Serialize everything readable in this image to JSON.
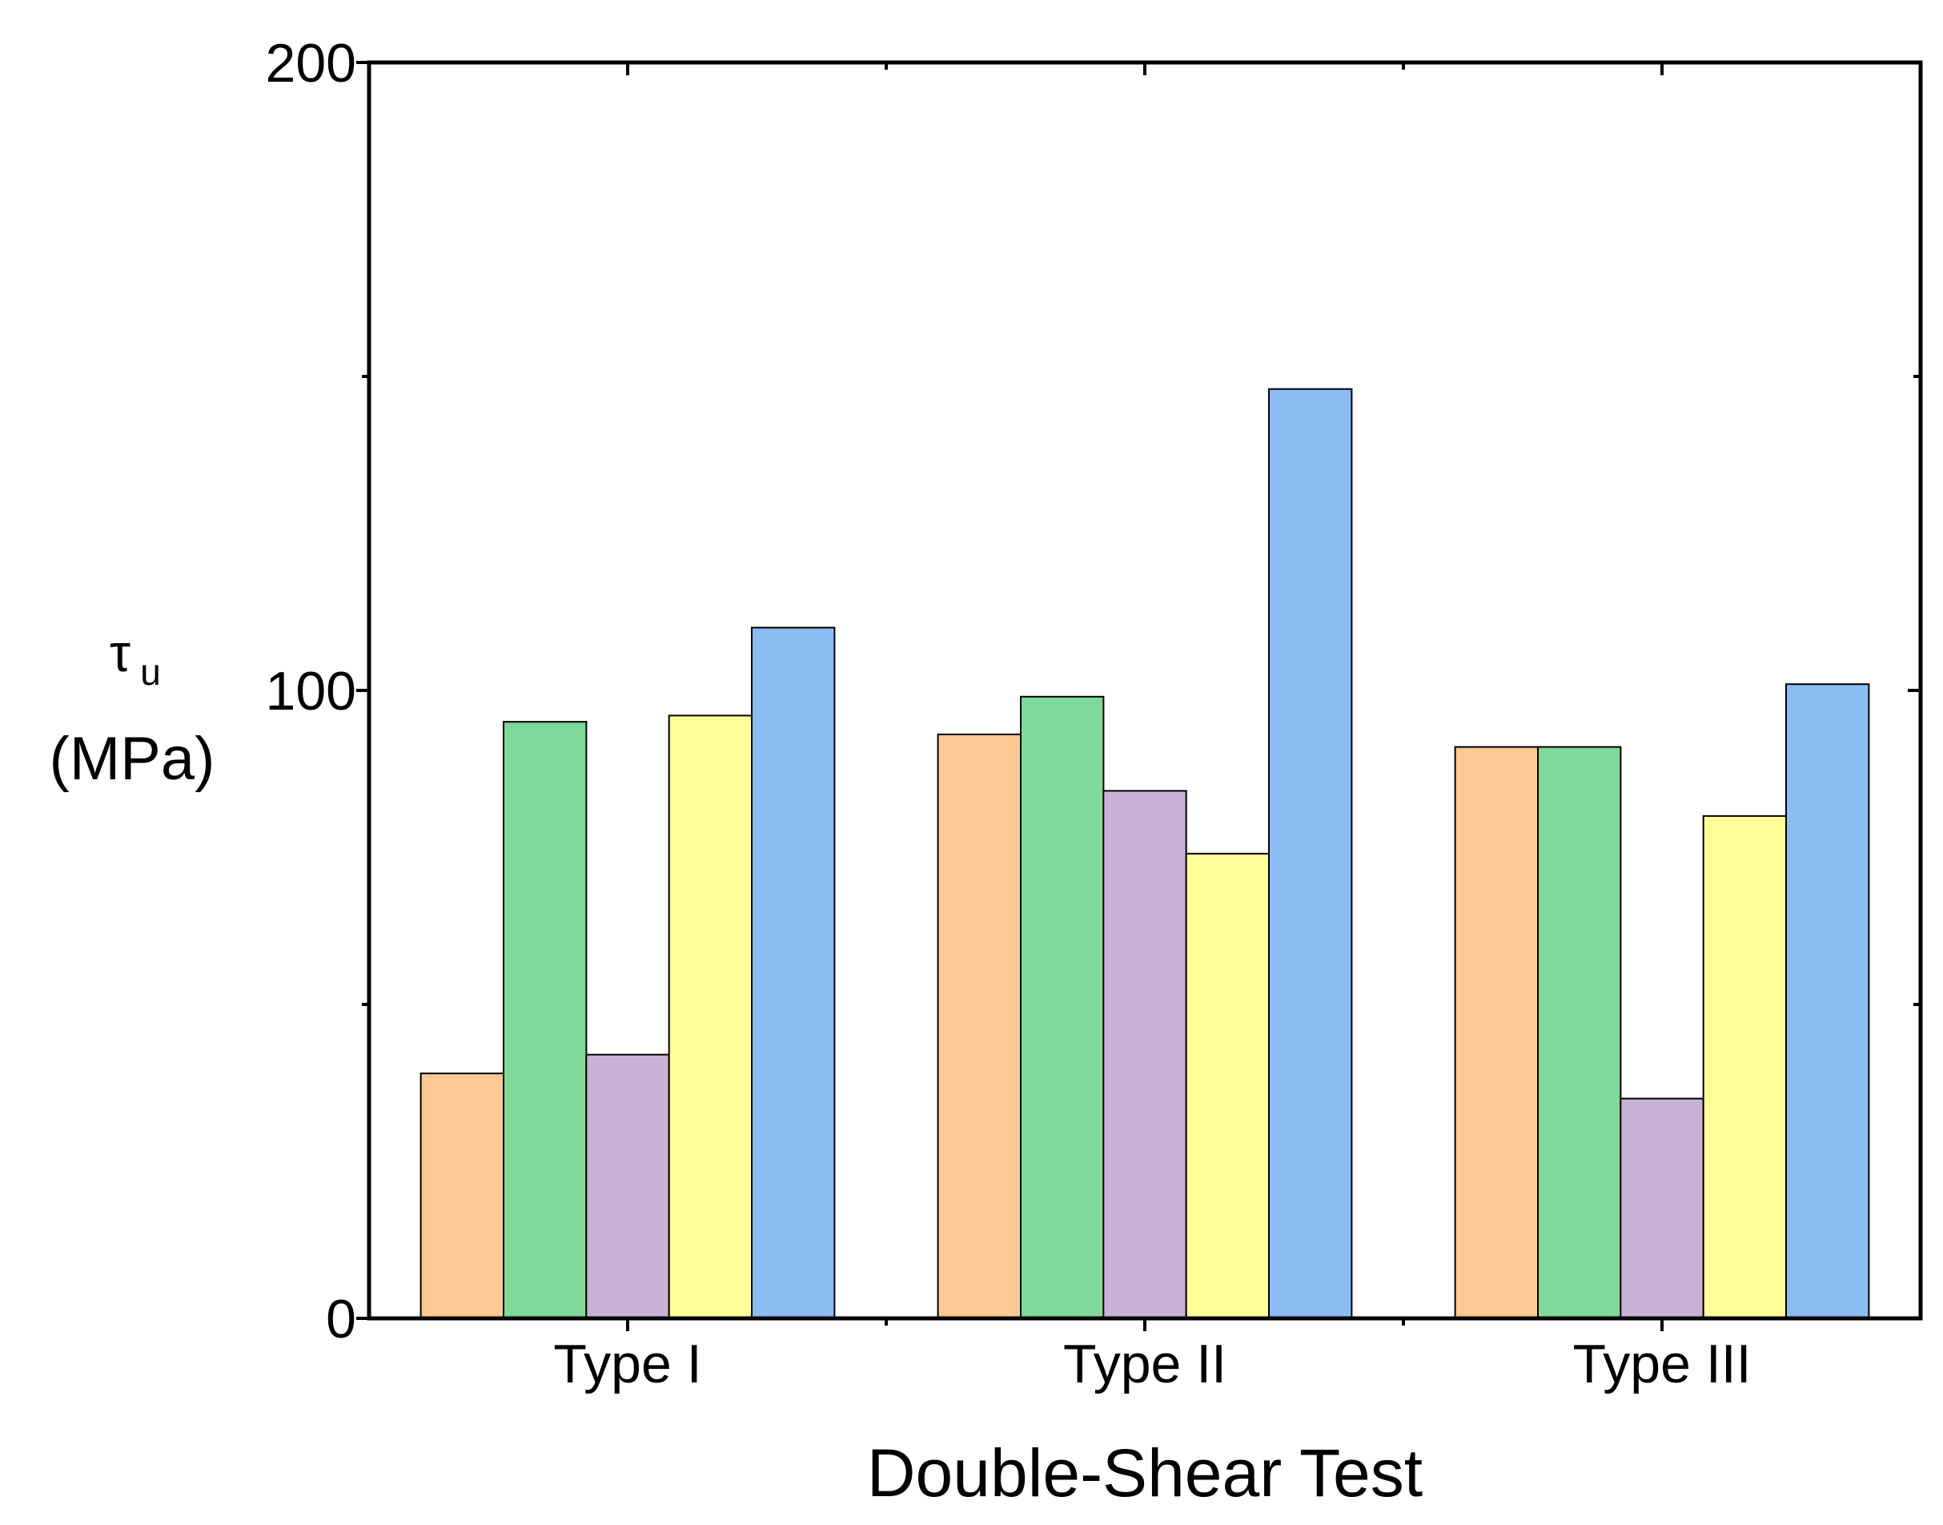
{
  "chart_data": {
    "type": "bar",
    "title": "",
    "xlabel": "Double-Shear Test",
    "ylabel": {
      "symbol": "τ",
      "subscript": "u",
      "unit": "(MPa)"
    },
    "ylim": [
      0,
      200
    ],
    "yticks": [
      0,
      100,
      200
    ],
    "yticks_minor": [
      50,
      150
    ],
    "categories": [
      "Type I",
      "Type II",
      "Type III"
    ],
    "series": [
      {
        "color": "#FFC994",
        "values": [
          39,
          93,
          91
        ]
      },
      {
        "color": "#80D99A",
        "values": [
          95,
          99,
          91
        ]
      },
      {
        "color": "#C8B1D6",
        "values": [
          42,
          84,
          35
        ]
      },
      {
        "color": "#FFFE99",
        "values": [
          96,
          74,
          80
        ]
      },
      {
        "color": "#8CBCF4",
        "values": [
          110,
          148,
          101
        ]
      }
    ],
    "grid": false,
    "legend": "none"
  }
}
